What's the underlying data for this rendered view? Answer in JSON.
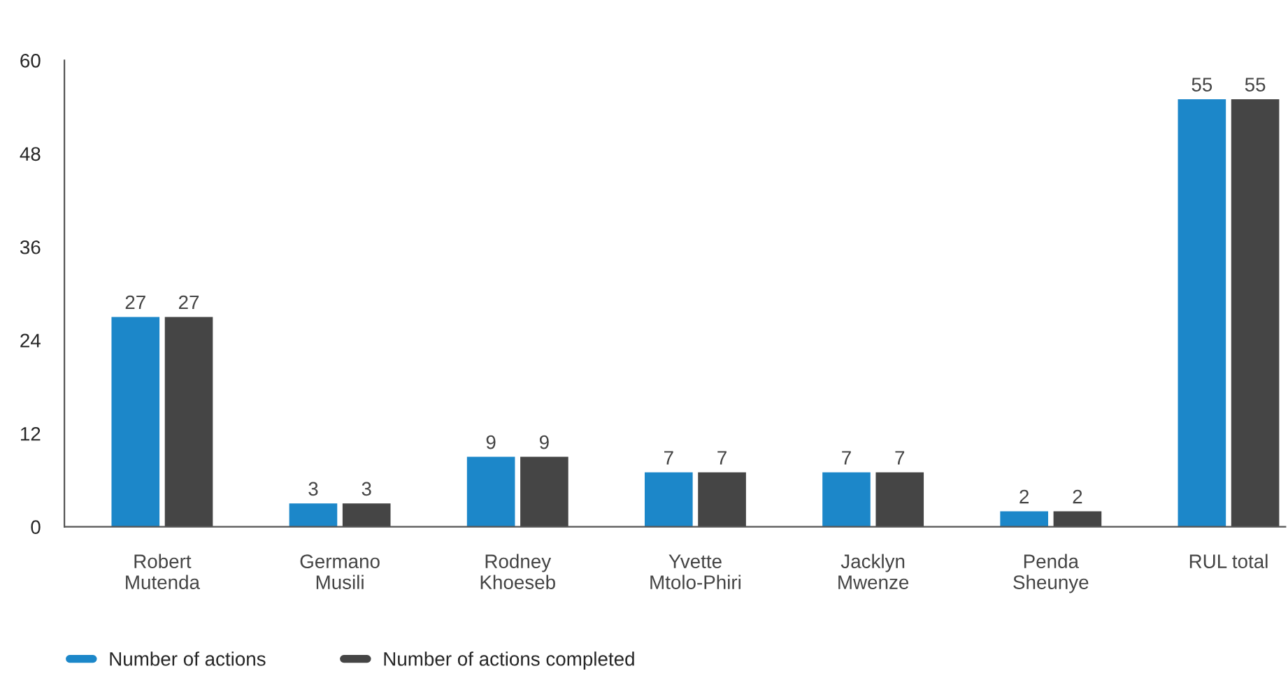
{
  "chart_data": {
    "type": "bar",
    "categories": [
      "Robert\nMutenda",
      "Germano\nMusili",
      "Rodney\nKhoeseb",
      "Yvette\nMtolo-Phiri",
      "Jacklyn\nMwenze",
      "Penda\nSheunye",
      "RUL total"
    ],
    "series": [
      {
        "name": "Number of actions",
        "color": "#1c87c9",
        "values": [
          27,
          3,
          9,
          7,
          7,
          2,
          55
        ]
      },
      {
        "name": "Number of actions completed",
        "color": "#454545",
        "values": [
          27,
          3,
          9,
          7,
          7,
          2,
          55
        ]
      }
    ],
    "ylim": [
      0,
      60
    ],
    "yticks": [
      0,
      12,
      24,
      36,
      48,
      60
    ],
    "grid": false,
    "legend": "bottom left",
    "data_labels": true
  }
}
